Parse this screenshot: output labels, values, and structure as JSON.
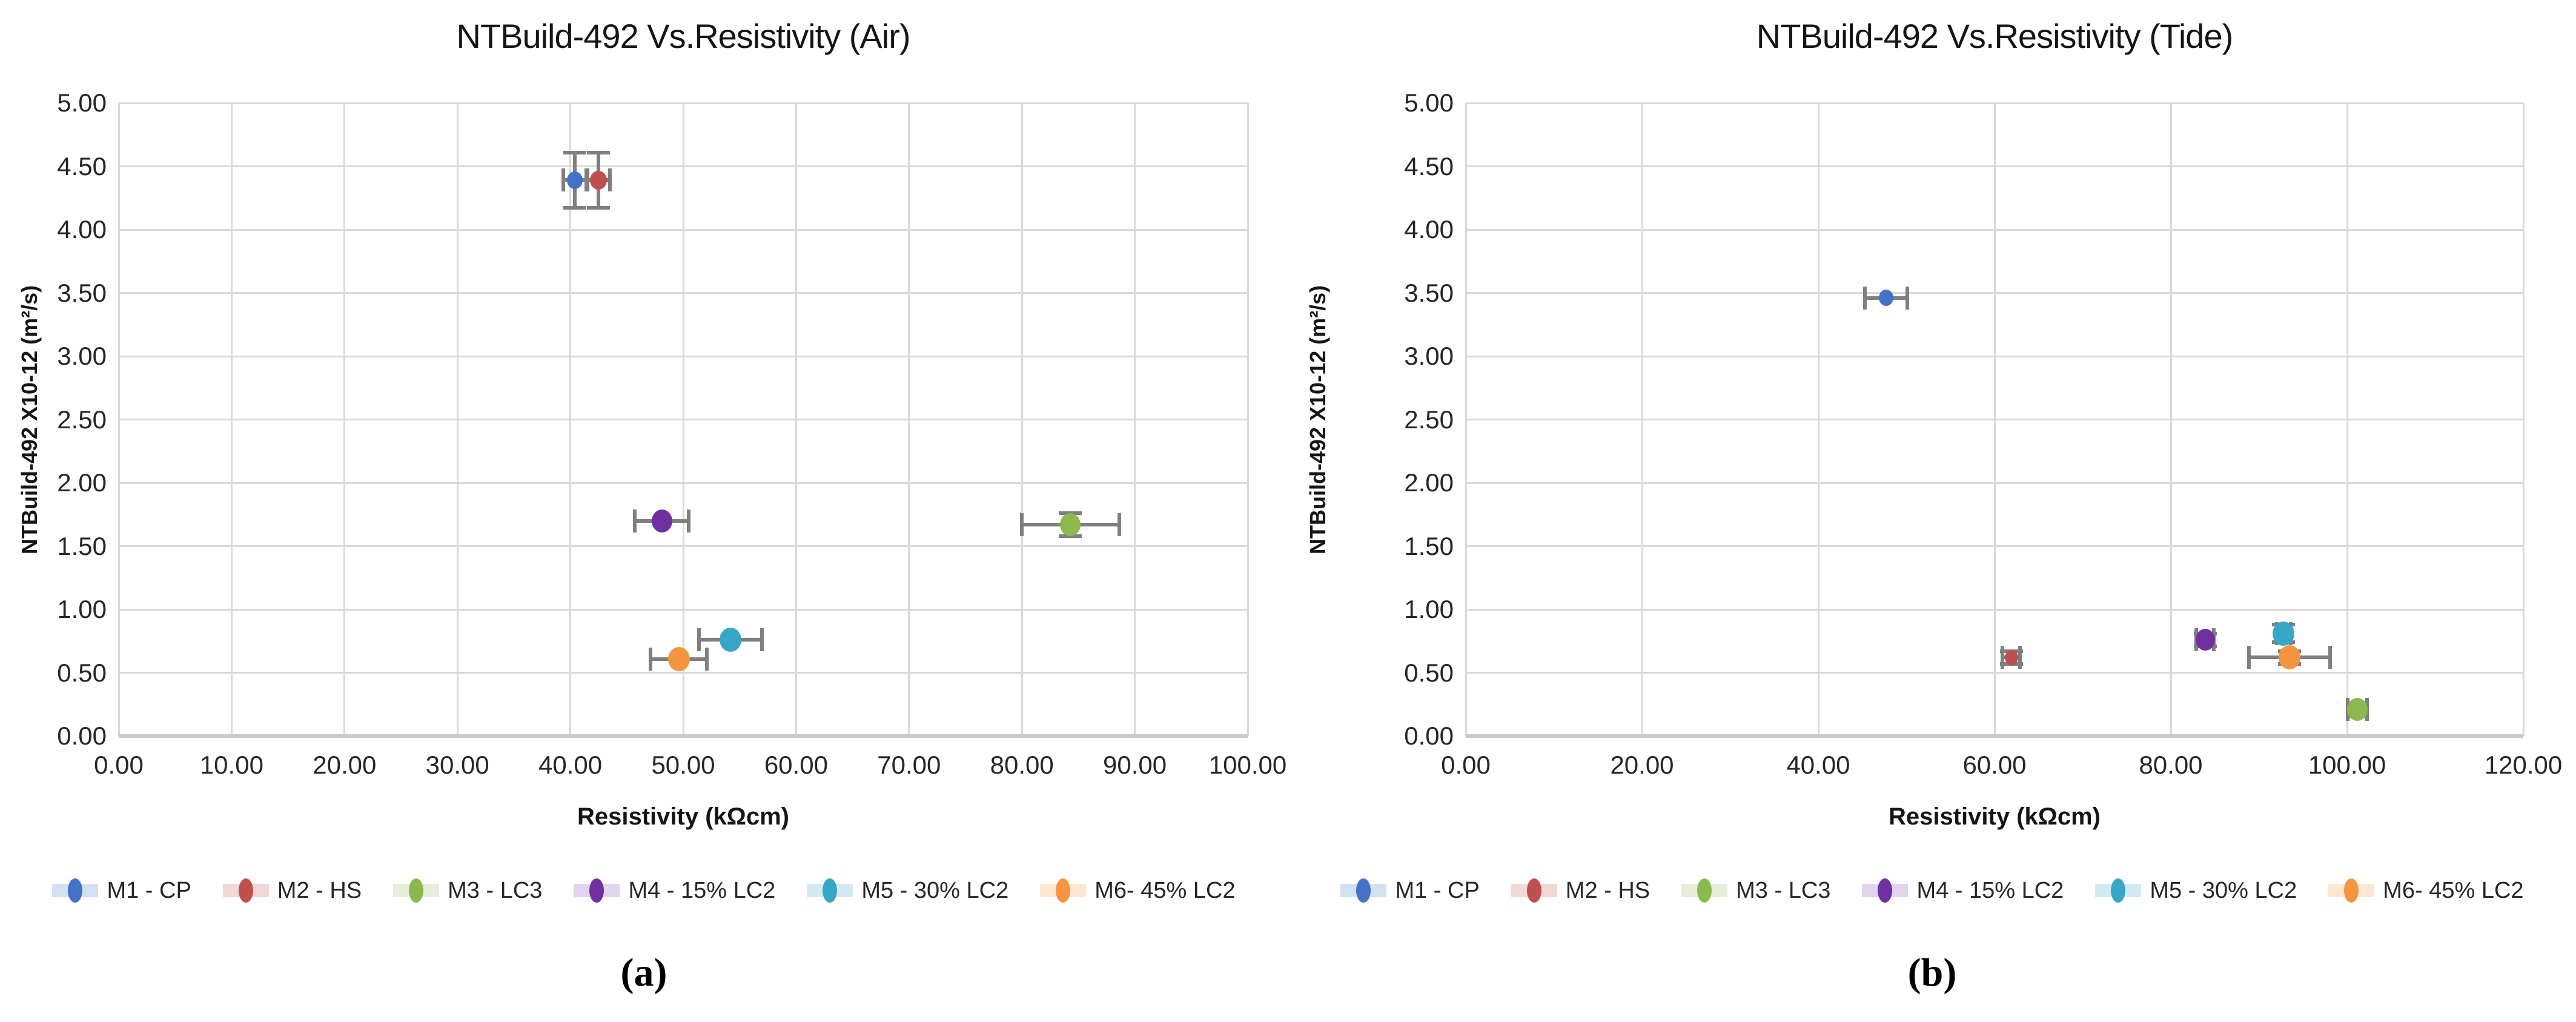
{
  "figure": {
    "captions": [
      "(a)",
      "(b)"
    ],
    "background": "#ffffff",
    "gridline_color": "#d9d9d9",
    "axis_line_color": "#c9c9c9",
    "error_bar_color": "#7f7f7f"
  },
  "chart_data": [
    {
      "type": "scatter",
      "title": "NTBuild-492 Vs.Resistivity (Air)",
      "xlabel": "Resistivity (kΩcm)",
      "ylabel": "NTBuild-492 X10-12 (m²/s)",
      "xlim": [
        0,
        100
      ],
      "ylim": [
        0,
        5
      ],
      "xtick_step": 10,
      "ytick_step": 0.5,
      "grid": true,
      "legend_position": "bottom",
      "series": [
        {
          "name": "M1 - CP",
          "color": "#4472c4",
          "tint": "#d3e0f2",
          "x": 40.4,
          "y": 4.39,
          "xerr": 1.0,
          "yerr": 0.22,
          "size": 26
        },
        {
          "name": "M2 - HS",
          "color": "#c0504d",
          "tint": "#f1d7d6",
          "x": 42.5,
          "y": 4.39,
          "xerr": 1.0,
          "yerr": 0.22,
          "size": 28
        },
        {
          "name": "M3 - LC3",
          "color": "#8cb94e",
          "tint": "#e6edd8",
          "x": 84.3,
          "y": 1.67,
          "xerr": 4.3,
          "yerr": 0.09,
          "size": 34
        },
        {
          "name": "M4 - 15% LC2",
          "color": "#7030a0",
          "tint": "#e2d4ec",
          "x": 48.1,
          "y": 1.7,
          "xerr": 2.4,
          "yerr": 0,
          "size": 34
        },
        {
          "name": "M5 - 30% LC2",
          "color": "#38a6c6",
          "tint": "#d4eaf3",
          "x": 54.2,
          "y": 0.76,
          "xerr": 2.8,
          "yerr": 0,
          "size": 36
        },
        {
          "name": "M6- 45% LC2",
          "color": "#f5953f",
          "tint": "#fde7d1",
          "x": 49.6,
          "y": 0.61,
          "xerr": 2.5,
          "yerr": 0,
          "size": 36
        }
      ]
    },
    {
      "type": "scatter",
      "title": "NTBuild-492 Vs.Resistivity (Tide)",
      "xlabel": "Resistivity (kΩcm)",
      "ylabel": "NTBuild-492 X10-12 (m²/s)",
      "xlim": [
        0,
        120
      ],
      "ylim": [
        0,
        5
      ],
      "xtick_step": 20,
      "ytick_step": 0.5,
      "grid": true,
      "legend_position": "bottom",
      "series": [
        {
          "name": "M1 - CP",
          "color": "#4472c4",
          "tint": "#d3e0f2",
          "x": 47.7,
          "y": 3.46,
          "xerr": 2.4,
          "yerr": 0,
          "size": 24
        },
        {
          "name": "M2 - HS",
          "color": "#c0504d",
          "tint": "#f1d7d6",
          "x": 61.9,
          "y": 0.62,
          "xerr": 1.0,
          "yerr": 0.05,
          "size": 22
        },
        {
          "name": "M3 - LC3",
          "color": "#8cb94e",
          "tint": "#e6edd8",
          "x": 101.2,
          "y": 0.21,
          "xerr": 1.1,
          "yerr": 0.05,
          "size": 34
        },
        {
          "name": "M4 - 15% LC2",
          "color": "#7030a0",
          "tint": "#e2d4ec",
          "x": 83.9,
          "y": 0.76,
          "xerr": 1.0,
          "yerr": 0.05,
          "size": 32
        },
        {
          "name": "M5 - 30% LC2",
          "color": "#38a6c6",
          "tint": "#d4eaf3",
          "x": 92.8,
          "y": 0.81,
          "xerr": 0.8,
          "yerr": 0.07,
          "size": 36
        },
        {
          "name": "M6- 45% LC2",
          "color": "#f5953f",
          "tint": "#fde7d1",
          "x": 93.5,
          "y": 0.62,
          "xerr": 4.6,
          "yerr": 0.05,
          "size": 36
        }
      ]
    }
  ]
}
